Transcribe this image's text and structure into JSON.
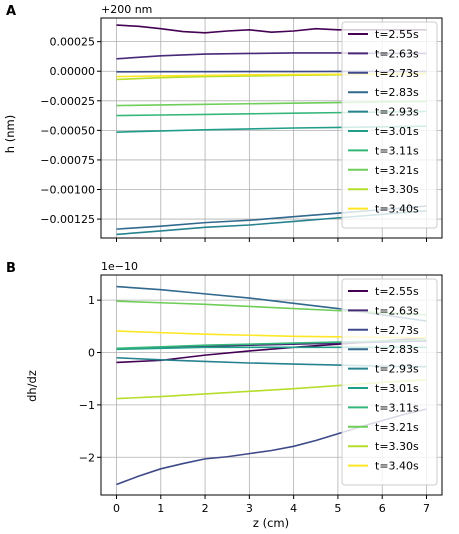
{
  "figure": {
    "panels": [
      {
        "letter": "A",
        "offset_text": "+200 nm",
        "ylabel": "h (nm)",
        "xlabel": ""
      },
      {
        "letter": "B",
        "offset_text": "1e−10",
        "ylabel": "dh/dz",
        "xlabel": "z (cm)"
      }
    ]
  },
  "chart_data": [
    {
      "type": "line",
      "panel": "A",
      "title": "",
      "xlabel": "",
      "ylabel": "h (nm)",
      "offset_text": "+200 nm",
      "xlim": [
        -0.35,
        7.35
      ],
      "ylim": [
        -0.00141,
        0.00045
      ],
      "xticks": [
        0,
        1,
        2,
        3,
        4,
        5,
        6,
        7
      ],
      "xtick_labels": [
        "",
        "",
        "",
        "",
        "",
        "",
        "",
        ""
      ],
      "yticks": [
        0.00025,
        0.0,
        -0.00025,
        -0.0005,
        -0.00075,
        -0.001,
        -0.00125
      ],
      "ytick_labels": [
        "0.00025",
        "0.00000",
        "−0.00025",
        "−0.00050",
        "−0.00075",
        "−0.00100",
        "−0.00125"
      ],
      "grid": true,
      "legend_position": "upper right",
      "series": [
        {
          "name": "t=2.55s",
          "color": "#440154",
          "x": [
            0,
            0.5,
            1,
            1.5,
            2,
            2.5,
            3,
            3.5,
            4,
            4.5,
            5,
            5.5,
            6,
            6.5,
            7
          ],
          "y": [
            0.00039,
            0.00038,
            0.00036,
            0.000335,
            0.000325,
            0.00034,
            0.00035,
            0.00033,
            0.00034,
            0.00036,
            0.00035,
            0.00035,
            0.00035,
            0.00035,
            0.00035
          ]
        },
        {
          "name": "t=2.63s",
          "color": "#482878",
          "x": [
            0,
            1,
            2,
            3,
            4,
            5,
            6,
            7
          ],
          "y": [
            0.000105,
            0.00013,
            0.000145,
            0.00015,
            0.000155,
            0.000155,
            0.00015,
            0.00015
          ]
        },
        {
          "name": "t=2.73s",
          "color": "#3e4989",
          "x": [
            0,
            1,
            2,
            3,
            4,
            5,
            6,
            7
          ],
          "y": [
            -5e-06,
            -4e-06,
            -3.5e-06,
            -3e-06,
            -2.5e-06,
            -2e-06,
            -2e-06,
            -2e-06
          ]
        },
        {
          "name": "t=2.83s",
          "color": "#31688e",
          "x": [
            0,
            1,
            2,
            3,
            4,
            5,
            6,
            7
          ],
          "y": [
            -0.001335,
            -0.00131,
            -0.00128,
            -0.00126,
            -0.00123,
            -0.0012,
            -0.00117,
            -0.00114
          ]
        },
        {
          "name": "t=2.93s",
          "color": "#26828e",
          "x": [
            0,
            1,
            2,
            3,
            4,
            5,
            6,
            7
          ],
          "y": [
            -0.00138,
            -0.00135,
            -0.00132,
            -0.0013,
            -0.00127,
            -0.00124,
            -0.00121,
            -0.00118
          ]
        },
        {
          "name": "t=3.01s",
          "color": "#1f9e89",
          "x": [
            0,
            1,
            2,
            3,
            4,
            5,
            6,
            7
          ],
          "y": [
            -0.000515,
            -0.000505,
            -0.000495,
            -0.000488,
            -0.00048,
            -0.000475,
            -0.00047,
            -0.000465
          ]
        },
        {
          "name": "t=3.11s",
          "color": "#35b779",
          "x": [
            0,
            1,
            2,
            3,
            4,
            5,
            6,
            7
          ],
          "y": [
            -0.000375,
            -0.00037,
            -0.000365,
            -0.00036,
            -0.000355,
            -0.00035,
            -0.000345,
            -0.00034
          ]
        },
        {
          "name": "t=3.21s",
          "color": "#6ece58",
          "x": [
            0,
            1,
            2,
            3,
            4,
            5,
            6,
            7
          ],
          "y": [
            -0.00029,
            -0.000285,
            -0.00028,
            -0.000275,
            -0.00027,
            -0.000265,
            -0.00026,
            -0.000255
          ]
        },
        {
          "name": "t=3.30s",
          "color": "#b5de2b",
          "x": [
            0,
            1,
            2,
            3,
            4,
            5,
            6,
            7
          ],
          "y": [
            -7e-05,
            -5.5e-05,
            -4.5e-05,
            -4e-05,
            -3.5e-05,
            -3e-05,
            -2.5e-05,
            -2e-05
          ]
        },
        {
          "name": "t=3.40s",
          "color": "#fde725",
          "x": [
            0,
            1,
            2,
            3,
            4,
            5,
            6,
            7
          ],
          "y": [
            -4.5e-05,
            -4e-05,
            -3.5e-05,
            -3e-05,
            -2.8e-05,
            -2.6e-05,
            -2.4e-05,
            -2.2e-05
          ]
        }
      ]
    },
    {
      "type": "line",
      "panel": "B",
      "title": "",
      "xlabel": "z (cm)",
      "ylabel": "dh/dz",
      "offset_text": "1e−10",
      "xlim": [
        -0.35,
        7.35
      ],
      "ylim": [
        -2.72,
        1.48
      ],
      "xticks": [
        0,
        1,
        2,
        3,
        4,
        5,
        6,
        7
      ],
      "xtick_labels": [
        "0",
        "1",
        "2",
        "3",
        "4",
        "5",
        "6",
        "7"
      ],
      "yticks": [
        1,
        0,
        -1,
        -2
      ],
      "ytick_labels": [
        "1",
        "0",
        "−1",
        "−2"
      ],
      "grid": true,
      "legend_position": "upper right",
      "series": [
        {
          "name": "t=2.55s",
          "color": "#440154",
          "x": [
            0,
            1,
            2,
            3,
            4,
            5,
            6,
            7
          ],
          "y": [
            -0.19,
            -0.15,
            -0.05,
            0.03,
            0.1,
            0.16,
            0.22,
            0.28
          ]
        },
        {
          "name": "t=2.63s",
          "color": "#482878",
          "x": [
            0,
            1,
            2,
            3,
            4,
            5,
            6,
            7
          ],
          "y": [
            0.07,
            0.1,
            0.12,
            0.14,
            0.16,
            0.18,
            0.2,
            0.22
          ]
        },
        {
          "name": "t=2.73s",
          "color": "#3e4989",
          "x": [
            0,
            0.5,
            1,
            1.5,
            2,
            2.5,
            3,
            3.5,
            4,
            4.5,
            5,
            5.5,
            6,
            6.5,
            7
          ],
          "y": [
            -2.52,
            -2.36,
            -2.22,
            -2.12,
            -2.03,
            -1.99,
            -1.93,
            -1.87,
            -1.79,
            -1.68,
            -1.55,
            -1.42,
            -1.3,
            -1.18,
            -1.08
          ]
        },
        {
          "name": "t=2.83s",
          "color": "#31688e",
          "x": [
            0,
            1,
            2,
            3,
            4,
            5,
            6,
            7
          ],
          "y": [
            1.26,
            1.2,
            1.12,
            1.04,
            0.94,
            0.84,
            0.72,
            0.6
          ]
        },
        {
          "name": "t=2.93s",
          "color": "#26828e",
          "x": [
            0,
            1,
            2,
            3,
            4,
            5,
            6,
            7
          ],
          "y": [
            -0.1,
            -0.14,
            -0.17,
            -0.2,
            -0.22,
            -0.24,
            -0.26,
            -0.27
          ]
        },
        {
          "name": "t=3.01s",
          "color": "#1f9e89",
          "x": [
            0,
            1,
            2,
            3,
            4,
            5,
            6,
            7
          ],
          "y": [
            0.06,
            0.08,
            0.1,
            0.1,
            0.1,
            0.1,
            0.1,
            0.1
          ]
        },
        {
          "name": "t=3.11s",
          "color": "#35b779",
          "x": [
            0,
            1,
            2,
            3,
            4,
            5,
            6,
            7
          ],
          "y": [
            0.08,
            0.11,
            0.14,
            0.16,
            0.18,
            0.2,
            0.22,
            0.24
          ]
        },
        {
          "name": "t=3.21s",
          "color": "#6ece58",
          "x": [
            0,
            1,
            2,
            3,
            4,
            5,
            6,
            7
          ],
          "y": [
            0.98,
            0.95,
            0.92,
            0.88,
            0.84,
            0.8,
            0.76,
            0.72
          ]
        },
        {
          "name": "t=3.30s",
          "color": "#b5de2b",
          "x": [
            0,
            1,
            2,
            3,
            4,
            5,
            6,
            7
          ],
          "y": [
            -0.88,
            -0.84,
            -0.79,
            -0.74,
            -0.69,
            -0.63,
            -0.57,
            -0.52
          ]
        },
        {
          "name": "t=3.40s",
          "color": "#fde725",
          "x": [
            0,
            1,
            2,
            3,
            4,
            5,
            6,
            7
          ],
          "y": [
            0.41,
            0.38,
            0.35,
            0.33,
            0.31,
            0.3,
            0.29,
            0.28
          ]
        }
      ]
    }
  ]
}
